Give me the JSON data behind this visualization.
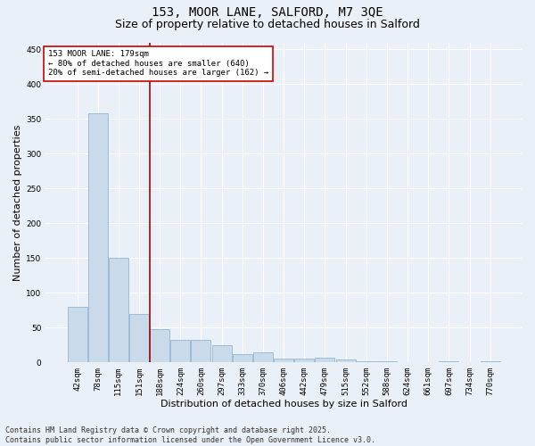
{
  "title1": "153, MOOR LANE, SALFORD, M7 3QE",
  "title2": "Size of property relative to detached houses in Salford",
  "xlabel": "Distribution of detached houses by size in Salford",
  "ylabel": "Number of detached properties",
  "categories": [
    "42sqm",
    "78sqm",
    "115sqm",
    "151sqm",
    "188sqm",
    "224sqm",
    "260sqm",
    "297sqm",
    "333sqm",
    "370sqm",
    "406sqm",
    "442sqm",
    "479sqm",
    "515sqm",
    "552sqm",
    "588sqm",
    "624sqm",
    "661sqm",
    "697sqm",
    "734sqm",
    "770sqm"
  ],
  "values": [
    80,
    358,
    150,
    70,
    48,
    32,
    32,
    25,
    12,
    15,
    6,
    6,
    7,
    4,
    2,
    1,
    0,
    0,
    1,
    0,
    1
  ],
  "bar_color": "#c9daea",
  "bar_edge_color": "#a0bcd4",
  "vline_x": 3.5,
  "vline_color": "#aa0000",
  "annotation_text": "153 MOOR LANE: 179sqm\n← 80% of detached houses are smaller (640)\n20% of semi-detached houses are larger (162) →",
  "annotation_box_color": "#ffffff",
  "annotation_box_edge": "#cc0000",
  "ylim": [
    0,
    460
  ],
  "yticks": [
    0,
    50,
    100,
    150,
    200,
    250,
    300,
    350,
    400,
    450
  ],
  "footnote": "Contains HM Land Registry data © Crown copyright and database right 2025.\nContains public sector information licensed under the Open Government Licence v3.0.",
  "bg_color": "#eaf0f8",
  "grid_color": "#ffffff",
  "title_fontsize": 10,
  "subtitle_fontsize": 9,
  "axis_label_fontsize": 8,
  "tick_fontsize": 6.5,
  "footnote_fontsize": 6,
  "annot_fontsize": 6.5
}
